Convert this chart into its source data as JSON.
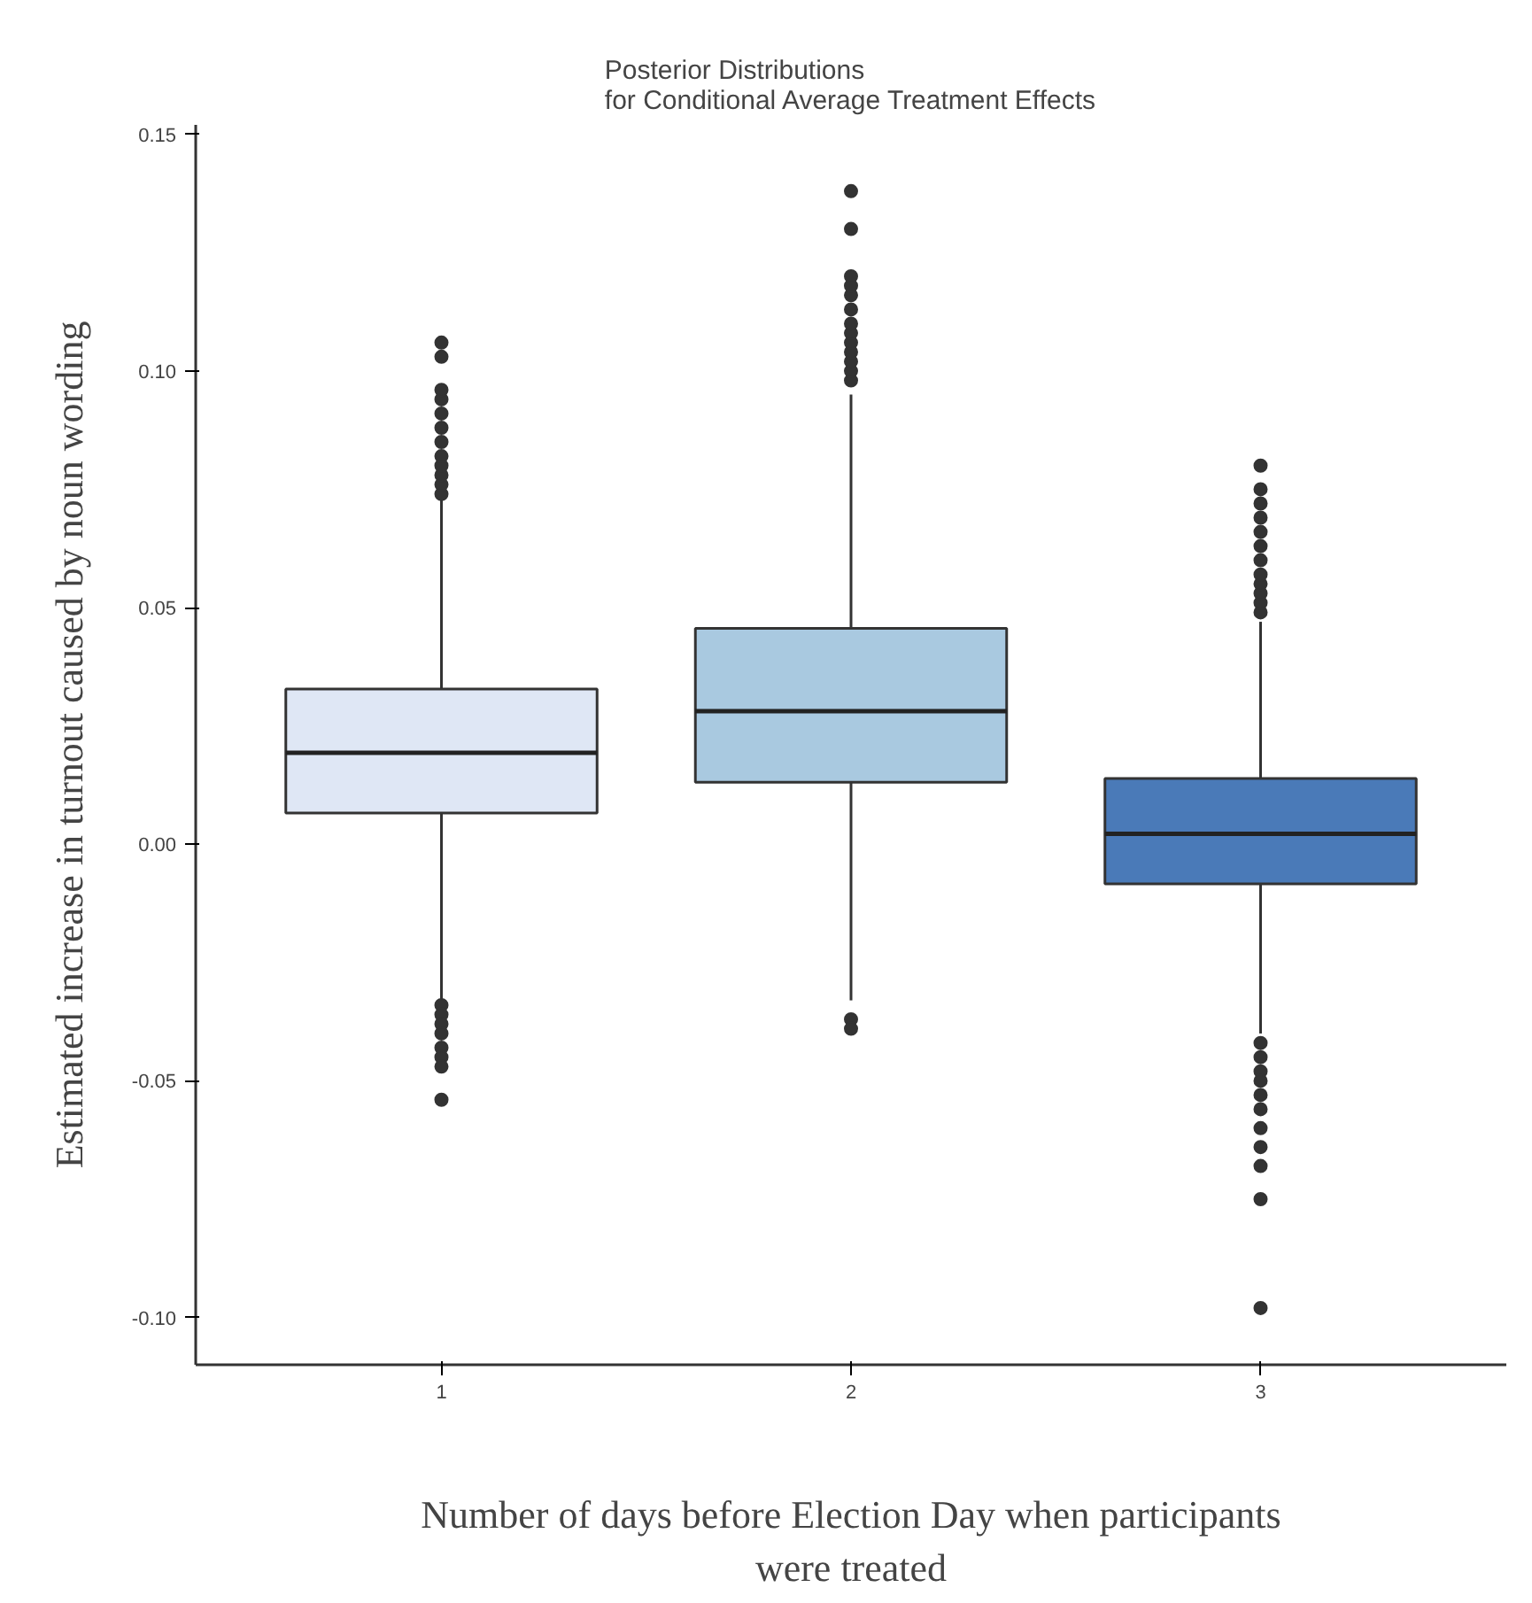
{
  "chart_data": {
    "type": "box",
    "title": "Posterior Distributions\nfor Conditional Average Treatment Effects",
    "xlabel": "Number of days before Election Day when participants were treated",
    "ylabel": "Estimated increase in turnout caused by noun wording",
    "categories": [
      "1",
      "2",
      "3"
    ],
    "colors": [
      "#dfe7f5",
      "#a9c9e0",
      "#4a7ab8"
    ],
    "boxes": [
      {
        "low": -0.033,
        "q1": 0.0066,
        "median": 0.0193,
        "q3": 0.0328,
        "high": 0.073,
        "outliers": [
          0.074,
          0.076,
          0.078,
          0.08,
          0.082,
          0.085,
          0.088,
          0.091,
          0.094,
          0.096,
          0.103,
          0.106,
          -0.034,
          -0.036,
          -0.038,
          -0.04,
          -0.043,
          -0.045,
          -0.047,
          -0.054
        ]
      },
      {
        "low": -0.033,
        "q1": 0.0131,
        "median": 0.0281,
        "q3": 0.0456,
        "high": 0.095,
        "outliers": [
          0.098,
          0.1,
          0.102,
          0.104,
          0.106,
          0.108,
          0.11,
          0.113,
          0.116,
          0.118,
          0.12,
          0.13,
          0.138,
          -0.037,
          -0.039
        ]
      },
      {
        "low": -0.04,
        "q1": -0.0084,
        "median": 0.0022,
        "q3": 0.0139,
        "high": 0.047,
        "outliers": [
          0.049,
          0.051,
          0.053,
          0.055,
          0.057,
          0.06,
          0.063,
          0.066,
          0.069,
          0.072,
          0.075,
          0.08,
          -0.042,
          -0.045,
          -0.048,
          -0.05,
          -0.053,
          -0.056,
          -0.06,
          -0.064,
          -0.068,
          -0.075,
          -0.098
        ]
      }
    ],
    "ylim": [
      -0.11,
      0.152
    ],
    "yticks": [
      {
        "value": -0.1,
        "label": "-0.10"
      },
      {
        "value": -0.05,
        "label": "-0.05"
      },
      {
        "value": 0,
        "label": "0.00"
      },
      {
        "value": 0.05,
        "label": "0.05"
      },
      {
        "value": 0.1,
        "label": "0.10"
      },
      {
        "value": 0.15,
        "label": "0.15"
      }
    ],
    "grid": false
  }
}
